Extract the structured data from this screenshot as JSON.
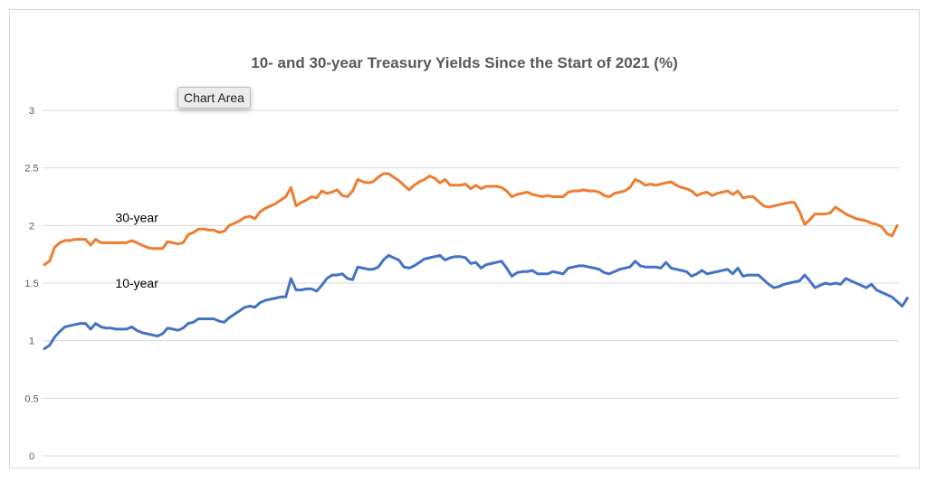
{
  "tooltip": {
    "text": "Chart Area"
  },
  "chart_data": {
    "type": "line",
    "title": "10- and 30-year Treasury Yields Since the Start of 2021  (%)",
    "xlabel": "",
    "ylabel": "",
    "ylim": [
      0,
      3
    ],
    "yticks": [
      0,
      0.5,
      1,
      1.5,
      2,
      2.5,
      3
    ],
    "grid": true,
    "legend": "none",
    "series": [
      {
        "name": "30-year",
        "color": "#ED7D31",
        "values": [
          1.66,
          1.69,
          1.81,
          1.85,
          1.87,
          1.87,
          1.88,
          1.88,
          1.88,
          1.83,
          1.88,
          1.85,
          1.85,
          1.85,
          1.85,
          1.85,
          1.85,
          1.87,
          1.85,
          1.83,
          1.81,
          1.8,
          1.8,
          1.8,
          1.86,
          1.85,
          1.84,
          1.85,
          1.92,
          1.94,
          1.97,
          1.97,
          1.96,
          1.96,
          1.94,
          1.95,
          2.0,
          2.02,
          2.04,
          2.07,
          2.08,
          2.06,
          2.12,
          2.15,
          2.17,
          2.19,
          2.22,
          2.25,
          2.33,
          2.17,
          2.2,
          2.22,
          2.25,
          2.24,
          2.3,
          2.28,
          2.29,
          2.31,
          2.26,
          2.25,
          2.3,
          2.4,
          2.38,
          2.37,
          2.38,
          2.42,
          2.45,
          2.45,
          2.42,
          2.39,
          2.35,
          2.31,
          2.35,
          2.38,
          2.4,
          2.43,
          2.41,
          2.37,
          2.4,
          2.35,
          2.35,
          2.35,
          2.36,
          2.32,
          2.35,
          2.32,
          2.34,
          2.34,
          2.34,
          2.33,
          2.3,
          2.25,
          2.27,
          2.28,
          2.29,
          2.27,
          2.26,
          2.25,
          2.26,
          2.25,
          2.25,
          2.25,
          2.29,
          2.3,
          2.3,
          2.31,
          2.3,
          2.3,
          2.29,
          2.26,
          2.25,
          2.28,
          2.29,
          2.3,
          2.33,
          2.4,
          2.38,
          2.35,
          2.36,
          2.35,
          2.36,
          2.37,
          2.38,
          2.35,
          2.33,
          2.32,
          2.3,
          2.26,
          2.28,
          2.29,
          2.26,
          2.28,
          2.29,
          2.3,
          2.27,
          2.3,
          2.24,
          2.25,
          2.25,
          2.21,
          2.17,
          2.16,
          2.17,
          2.18,
          2.19,
          2.2,
          2.2,
          2.12,
          2.01,
          2.05,
          2.1,
          2.1,
          2.1,
          2.11,
          2.16,
          2.13,
          2.1,
          2.08,
          2.06,
          2.05,
          2.04,
          2.02,
          2.01,
          1.99,
          1.93,
          1.91,
          2.0
        ]
      },
      {
        "name": "10-year",
        "color": "#4472C4",
        "values": [
          0.93,
          0.96,
          1.03,
          1.08,
          1.12,
          1.13,
          1.14,
          1.15,
          1.15,
          1.1,
          1.15,
          1.12,
          1.11,
          1.11,
          1.1,
          1.1,
          1.1,
          1.12,
          1.09,
          1.07,
          1.06,
          1.05,
          1.04,
          1.06,
          1.11,
          1.1,
          1.09,
          1.11,
          1.15,
          1.16,
          1.19,
          1.19,
          1.19,
          1.19,
          1.17,
          1.16,
          1.2,
          1.23,
          1.26,
          1.29,
          1.3,
          1.29,
          1.33,
          1.35,
          1.36,
          1.37,
          1.38,
          1.38,
          1.54,
          1.44,
          1.44,
          1.45,
          1.45,
          1.43,
          1.48,
          1.54,
          1.57,
          1.57,
          1.58,
          1.54,
          1.53,
          1.64,
          1.63,
          1.62,
          1.62,
          1.64,
          1.7,
          1.74,
          1.72,
          1.7,
          1.64,
          1.63,
          1.65,
          1.68,
          1.71,
          1.72,
          1.73,
          1.74,
          1.7,
          1.72,
          1.73,
          1.73,
          1.72,
          1.67,
          1.68,
          1.63,
          1.66,
          1.67,
          1.68,
          1.69,
          1.63,
          1.56,
          1.59,
          1.6,
          1.6,
          1.61,
          1.58,
          1.58,
          1.58,
          1.6,
          1.59,
          1.58,
          1.63,
          1.64,
          1.65,
          1.65,
          1.64,
          1.63,
          1.62,
          1.59,
          1.58,
          1.6,
          1.62,
          1.63,
          1.64,
          1.69,
          1.65,
          1.64,
          1.64,
          1.64,
          1.63,
          1.68,
          1.63,
          1.62,
          1.61,
          1.6,
          1.56,
          1.58,
          1.61,
          1.58,
          1.59,
          1.6,
          1.61,
          1.62,
          1.58,
          1.63,
          1.56,
          1.57,
          1.57,
          1.57,
          1.53,
          1.49,
          1.46,
          1.47,
          1.49,
          1.5,
          1.51,
          1.52,
          1.57,
          1.52,
          1.46,
          1.48,
          1.5,
          1.49,
          1.5,
          1.49,
          1.54,
          1.52,
          1.5,
          1.48,
          1.46,
          1.49,
          1.44,
          1.42,
          1.4,
          1.38,
          1.34,
          1.3,
          1.37
        ]
      }
    ],
    "annotations": [
      {
        "text": "30-year",
        "x_index": 18,
        "y": 2.03,
        "series": "30-year"
      },
      {
        "text": "10-year",
        "x_index": 18,
        "y": 1.46,
        "series": "10-year"
      }
    ]
  }
}
